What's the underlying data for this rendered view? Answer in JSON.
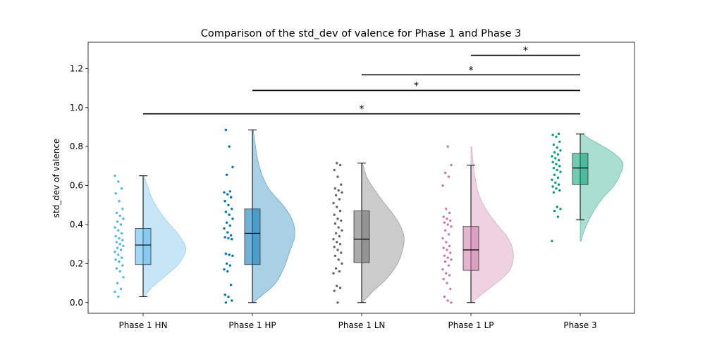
{
  "chart_data": {
    "type": "raincloud",
    "title": "Comparison of the std_dev of valence for Phase 1 and Phase 3",
    "xlabel": "",
    "ylabel": "std_dev of valence",
    "ylim": [
      -0.055,
      1.335
    ],
    "yticks": [
      0.0,
      0.2,
      0.4,
      0.6,
      0.8,
      1.0,
      1.2
    ],
    "ytick_labels": [
      "0.0",
      "0.2",
      "0.4",
      "0.6",
      "0.8",
      "1.0",
      "1.2"
    ],
    "categories": [
      "Phase 1 HN",
      "Phase 1 HP",
      "Phase 1 LN",
      "Phase 1 LP",
      "Phase 3"
    ],
    "grid": false,
    "groups": [
      {
        "category": "Phase 1 HN",
        "color": "#56B4E9",
        "box": {
          "min": 0.03,
          "q1": 0.195,
          "median": 0.295,
          "q3": 0.38,
          "max": 0.65
        },
        "violin": {
          "y": [
            0.03,
            0.08,
            0.14,
            0.2,
            0.26,
            0.3,
            0.36,
            0.42,
            0.48,
            0.54,
            0.6,
            0.65
          ],
          "density": [
            0.03,
            0.22,
            0.55,
            0.85,
            1.0,
            0.98,
            0.8,
            0.55,
            0.35,
            0.2,
            0.1,
            0.02
          ]
        },
        "points": [
          0.65,
          0.62,
          0.585,
          0.56,
          0.52,
          0.48,
          0.46,
          0.445,
          0.43,
          0.415,
          0.4,
          0.385,
          0.37,
          0.355,
          0.34,
          0.33,
          0.32,
          0.31,
          0.3,
          0.29,
          0.28,
          0.27,
          0.26,
          0.245,
          0.23,
          0.22,
          0.21,
          0.19,
          0.175,
          0.16,
          0.13,
          0.1,
          0.07,
          0.055,
          0.03
        ]
      },
      {
        "category": "Phase 1 HP",
        "color": "#0072B2",
        "box": {
          "min": 0.0,
          "q1": 0.195,
          "median": 0.355,
          "q3": 0.48,
          "max": 0.885
        },
        "violin": {
          "y": [
            0.0,
            0.05,
            0.1,
            0.18,
            0.26,
            0.34,
            0.42,
            0.5,
            0.58,
            0.66,
            0.74,
            0.82,
            0.885
          ],
          "density": [
            0.02,
            0.3,
            0.55,
            0.75,
            0.88,
            1.0,
            0.95,
            0.72,
            0.4,
            0.22,
            0.12,
            0.06,
            0.02
          ]
        },
        "points": [
          0.885,
          0.8,
          0.695,
          0.655,
          0.57,
          0.565,
          0.555,
          0.54,
          0.52,
          0.5,
          0.48,
          0.465,
          0.45,
          0.43,
          0.41,
          0.395,
          0.38,
          0.36,
          0.345,
          0.335,
          0.33,
          0.325,
          0.25,
          0.245,
          0.24,
          0.2,
          0.19,
          0.17,
          0.16,
          0.09,
          0.04,
          0.03,
          0.01,
          0.0
        ]
      },
      {
        "category": "Phase 1 LN",
        "color": "#666666",
        "box": {
          "min": 0.0,
          "q1": 0.205,
          "median": 0.325,
          "q3": 0.47,
          "max": 0.715
        },
        "violin": {
          "y": [
            0.0,
            0.06,
            0.12,
            0.2,
            0.28,
            0.34,
            0.4,
            0.46,
            0.52,
            0.58,
            0.64,
            0.715
          ],
          "density": [
            0.02,
            0.28,
            0.58,
            0.85,
            0.98,
            1.0,
            0.9,
            0.72,
            0.5,
            0.3,
            0.13,
            0.02
          ]
        },
        "points": [
          0.715,
          0.705,
          0.68,
          0.645,
          0.605,
          0.585,
          0.575,
          0.565,
          0.55,
          0.53,
          0.51,
          0.49,
          0.47,
          0.45,
          0.43,
          0.42,
          0.405,
          0.385,
          0.37,
          0.355,
          0.34,
          0.325,
          0.31,
          0.3,
          0.285,
          0.27,
          0.255,
          0.24,
          0.22,
          0.2,
          0.175,
          0.16,
          0.15,
          0.085,
          0.075,
          0.06,
          0.0
        ]
      },
      {
        "category": "Phase 1 LP",
        "color": "#CC79A7",
        "box": {
          "min": 0.0,
          "q1": 0.165,
          "median": 0.27,
          "q3": 0.39,
          "max": 0.705
        },
        "violin": {
          "y": [
            0.0,
            0.05,
            0.1,
            0.16,
            0.22,
            0.28,
            0.34,
            0.4,
            0.48,
            0.56,
            0.64,
            0.72,
            0.8
          ],
          "density": [
            0.02,
            0.3,
            0.6,
            0.9,
            1.0,
            0.98,
            0.85,
            0.62,
            0.35,
            0.18,
            0.1,
            0.05,
            0.02
          ]
        },
        "points": [
          0.8,
          0.705,
          0.665,
          0.645,
          0.6,
          0.48,
          0.46,
          0.44,
          0.43,
          0.42,
          0.41,
          0.4,
          0.39,
          0.37,
          0.35,
          0.33,
          0.31,
          0.29,
          0.28,
          0.27,
          0.255,
          0.24,
          0.23,
          0.22,
          0.21,
          0.19,
          0.17,
          0.15,
          0.14,
          0.12,
          0.1,
          0.07,
          0.03,
          0.01,
          0.0
        ]
      },
      {
        "category": "Phase 3",
        "color": "#009E73",
        "box": {
          "min": 0.425,
          "q1": 0.605,
          "median": 0.69,
          "q3": 0.765,
          "max": 0.865
        },
        "violin": {
          "y": [
            0.315,
            0.36,
            0.42,
            0.48,
            0.54,
            0.6,
            0.66,
            0.72,
            0.78,
            0.83,
            0.865
          ],
          "density": [
            0.02,
            0.08,
            0.2,
            0.35,
            0.55,
            0.8,
            0.95,
            1.0,
            0.7,
            0.3,
            0.05
          ]
        },
        "points": [
          0.865,
          0.86,
          0.85,
          0.825,
          0.81,
          0.795,
          0.78,
          0.77,
          0.76,
          0.75,
          0.74,
          0.73,
          0.72,
          0.71,
          0.7,
          0.69,
          0.68,
          0.67,
          0.655,
          0.64,
          0.63,
          0.615,
          0.605,
          0.595,
          0.585,
          0.575,
          0.565,
          0.49,
          0.48,
          0.47,
          0.44,
          0.315
        ]
      }
    ],
    "significance": [
      {
        "from": "Phase 1 HN",
        "to": "Phase 3",
        "y": 0.968,
        "label": "*"
      },
      {
        "from": "Phase 1 HP",
        "to": "Phase 3",
        "y": 1.088,
        "label": "*"
      },
      {
        "from": "Phase 1 LN",
        "to": "Phase 3",
        "y": 1.168,
        "label": "*"
      },
      {
        "from": "Phase 1 LP",
        "to": "Phase 3",
        "y": 1.268,
        "label": "*"
      }
    ]
  }
}
